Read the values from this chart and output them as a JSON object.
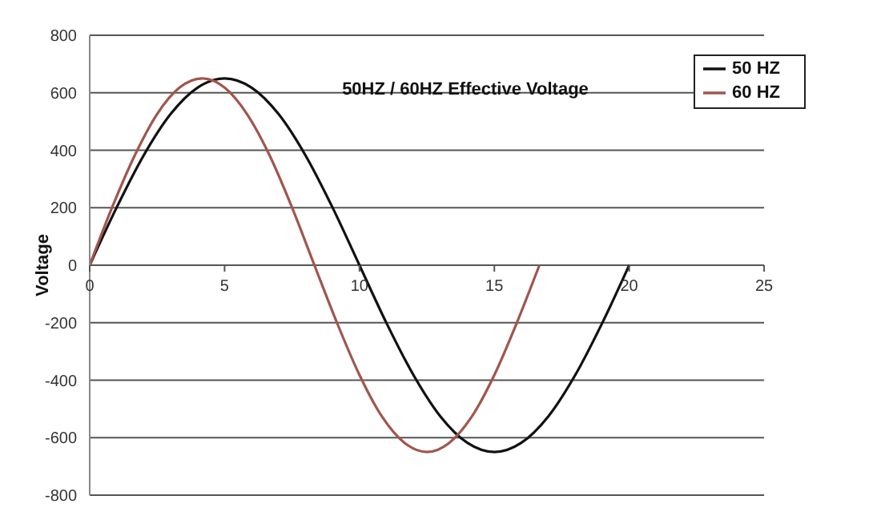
{
  "chart_data": {
    "type": "line",
    "title": "50HZ / 60HZ Effective Voltage",
    "ylabel": "Voltage",
    "xlim": [
      0,
      25
    ],
    "xticks": [
      0,
      5,
      10,
      15,
      20,
      25
    ],
    "ylim": [
      -800,
      800
    ],
    "yticks": [
      -800,
      -600,
      -400,
      -200,
      0,
      200,
      400,
      600,
      800
    ],
    "grid": "y",
    "legend": "top right",
    "marker": "none",
    "line_style": "solid",
    "series": [
      {
        "name": "50 HZ",
        "color": "#111111",
        "x": [
          0,
          1,
          2,
          3,
          4,
          5,
          6,
          7,
          8,
          9,
          10,
          11,
          12,
          13,
          14,
          15,
          16,
          17,
          18,
          19,
          20
        ],
        "values": [
          0,
          201,
          382,
          526,
          618,
          650,
          618,
          526,
          382,
          201,
          0,
          -201,
          -382,
          -526,
          -618,
          -650,
          -618,
          -526,
          -382,
          -201,
          0
        ]
      },
      {
        "name": "60 HZ",
        "color": "#a0564c",
        "x": [
          0,
          0.83,
          1.67,
          2.5,
          3.33,
          4.17,
          5,
          5.83,
          6.67,
          7.5,
          8.33,
          9.17,
          10,
          10.83,
          11.67,
          12.5,
          13.33,
          14.17,
          15,
          15.83,
          16.67
        ],
        "values": [
          0,
          201,
          382,
          526,
          618,
          650,
          618,
          526,
          382,
          201,
          0,
          -201,
          -382,
          -526,
          -618,
          -650,
          -618,
          -526,
          -382,
          -201,
          0
        ]
      }
    ]
  }
}
